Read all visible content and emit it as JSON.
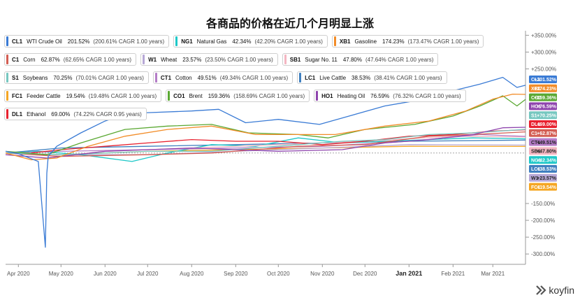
{
  "title": "各商品的价格在近几个月明显上涨",
  "brand": "koyfin",
  "chart_data": {
    "type": "line",
    "title": "各商品的价格在近几个月明显上涨",
    "x_labels": [
      "Apr 2020",
      "May 2020",
      "Jun 2020",
      "Jul 2020",
      "Aug 2020",
      "Sep 2020",
      "Oct 2020",
      "Nov 2020",
      "Dec 2020",
      "Jan 2021",
      "Feb 2021",
      "Mar 2021"
    ],
    "x_range": [
      "2020-03-23",
      "2021-03-24"
    ],
    "y_axis_labels": [
      "+350.00%",
      "+300.00%",
      "+250.00%",
      "-150.00%",
      "-200.00%",
      "-250.00%",
      "-300.00%"
    ],
    "y_range": [
      -310,
      355
    ],
    "y_unit": "%",
    "grid": false,
    "legend_position": "top-left",
    "series": [
      {
        "ticker": "CL1",
        "name": "WTI Crude Oil",
        "pct": "201.52%",
        "cagr": "(200.61% CAGR 1.00 years)",
        "badge": "CL1",
        "badge_value": "+201.52%",
        "color": "#3a7bd5",
        "final": 201.52,
        "x": [
          "2020-03-23",
          "2020-04-01",
          "2020-04-15",
          "2020-04-20",
          "2020-04-21",
          "2020-04-22",
          "2020-04-28",
          "2020-05-15",
          "2020-06-01",
          "2020-06-15",
          "2020-07-01",
          "2020-08-01",
          "2020-08-20",
          "2020-09-08",
          "2020-10-01",
          "2020-10-30",
          "2020-11-20",
          "2020-12-15",
          "2021-01-05",
          "2021-02-01",
          "2021-02-20",
          "2021-03-08",
          "2021-03-18",
          "2021-03-24"
        ],
        "y": [
          5,
          -2,
          -25,
          -280,
          -60,
          -10,
          20,
          60,
          95,
          115,
          120,
          125,
          130,
          90,
          100,
          85,
          110,
          140,
          155,
          185,
          205,
          225,
          195,
          201.52
        ]
      },
      {
        "ticker": "XB1",
        "name": "Gasoline",
        "pct": "174.23%",
        "cagr": "(173.47% CAGR 1.00 years)",
        "badge": "XB1",
        "badge_value": "+174.23%",
        "color": "#f28c28",
        "final": 174.23,
        "x": [
          "2020-03-23",
          "2020-04-10",
          "2020-04-28",
          "2020-05-20",
          "2020-06-15",
          "2020-07-15",
          "2020-08-15",
          "2020-09-15",
          "2020-10-15",
          "2020-11-10",
          "2020-12-15",
          "2021-01-15",
          "2021-02-10",
          "2021-03-01",
          "2021-03-15",
          "2021-03-24"
        ],
        "y": [
          0,
          -20,
          -15,
          20,
          50,
          70,
          80,
          55,
          55,
          55,
          80,
          95,
          125,
          160,
          175,
          174.23
        ]
      },
      {
        "ticker": "CO1",
        "name": "Brent",
        "pct": "159.36%",
        "cagr": "(158.69% CAGR 1.00 years)",
        "badge": "CO1",
        "badge_value": "+159.36%",
        "color": "#5aa832",
        "final": 159.36,
        "x": [
          "2020-03-23",
          "2020-04-21",
          "2020-05-15",
          "2020-06-15",
          "2020-07-15",
          "2020-08-15",
          "2020-09-10",
          "2020-10-15",
          "2020-11-05",
          "2020-12-01",
          "2021-01-05",
          "2021-02-01",
          "2021-02-20",
          "2021-03-08",
          "2021-03-18",
          "2021-03-24"
        ],
        "y": [
          5,
          -5,
          30,
          70,
          80,
          85,
          60,
          55,
          45,
          70,
          85,
          110,
          140,
          170,
          140,
          159.36
        ]
      },
      {
        "ticker": "HO1",
        "name": "Heating Oil",
        "pct": "76.59%",
        "cagr": "(76.32% CAGR 1.00 years)",
        "badge": "HO1",
        "badge_value": "+76.59%",
        "color": "#8e44ad",
        "final": 76.59,
        "x": [
          "2020-03-23",
          "2020-04-21",
          "2020-06-01",
          "2020-08-01",
          "2020-10-01",
          "2020-11-15",
          "2020-12-15",
          "2021-01-15",
          "2021-02-15",
          "2021-03-08",
          "2021-03-24"
        ],
        "y": [
          -5,
          -15,
          5,
          15,
          5,
          10,
          30,
          40,
          55,
          75,
          76.59
        ]
      },
      {
        "ticker": "S1",
        "name": "Soybeans",
        "pct": "70.25%",
        "cagr": "(70.01% CAGR 1.00 years)",
        "badge": "S1",
        "badge_value": "+70.25%",
        "color": "#76c7c0",
        "final": 70.25,
        "x": [
          "2020-03-23",
          "2020-05-01",
          "2020-07-01",
          "2020-08-15",
          "2020-09-15",
          "2020-10-15",
          "2020-11-15",
          "2020-12-15",
          "2021-01-15",
          "2021-02-15",
          "2021-03-24"
        ],
        "y": [
          0,
          -5,
          5,
          5,
          15,
          25,
          35,
          40,
          55,
          60,
          70.25
        ]
      },
      {
        "ticker": "DL1",
        "name": "Ethanol",
        "pct": "69.00%",
        "cagr": "(74.22% CAGR 0.95 years)",
        "badge": "DL1",
        "badge_value": "+69.00%",
        "color": "#e8212f",
        "final": 69.0,
        "x": [
          "2020-04-10",
          "2020-05-01",
          "2020-06-01",
          "2020-07-01",
          "2020-08-01",
          "2020-09-01",
          "2020-10-01",
          "2020-11-01",
          "2020-12-01",
          "2021-01-01",
          "2021-02-01",
          "2021-03-01",
          "2021-03-24"
        ],
        "y": [
          0,
          10,
          20,
          30,
          40,
          35,
          35,
          25,
          35,
          50,
          55,
          65,
          69.0
        ]
      },
      {
        "ticker": "C1",
        "name": "Corn",
        "pct": "62.87%",
        "cagr": "(62.65% CAGR 1.00 years)",
        "badge": "C1",
        "badge_value": "+62.87%",
        "color": "#d35d52",
        "final": 62.87,
        "x": [
          "2020-03-23",
          "2020-05-01",
          "2020-07-01",
          "2020-08-15",
          "2020-09-15",
          "2020-10-15",
          "2020-12-01",
          "2021-01-15",
          "2021-02-15",
          "2021-03-24"
        ],
        "y": [
          0,
          -10,
          -5,
          0,
          10,
          20,
          25,
          50,
          55,
          62.87
        ]
      },
      {
        "ticker": "CT1",
        "name": "Cotton",
        "pct": "49.51%",
        "cagr": "(49.34% CAGR 1.00 years)",
        "badge": "CT1",
        "badge_value": "+49.51%",
        "color": "#b47cc7",
        "final": 49.51,
        "x": [
          "2020-03-23",
          "2020-05-01",
          "2020-07-01",
          "2020-09-01",
          "2020-11-01",
          "2021-01-01",
          "2021-02-20",
          "2021-03-24"
        ],
        "y": [
          0,
          5,
          10,
          15,
          20,
          35,
          55,
          49.51
        ]
      },
      {
        "ticker": "SB1",
        "name": "Sugar No. 11",
        "pct": "47.80%",
        "cagr": "(47.64% CAGR 1.00 years)",
        "badge": "SB1",
        "badge_value": "+47.80%",
        "color": "#f4b6c2",
        "final": 47.8,
        "x": [
          "2020-03-23",
          "2020-04-28",
          "2020-06-01",
          "2020-08-01",
          "2020-10-01",
          "2020-12-01",
          "2021-02-01",
          "2021-03-24"
        ],
        "y": [
          0,
          -10,
          5,
          15,
          25,
          35,
          50,
          47.8
        ]
      },
      {
        "ticker": "NG1",
        "name": "Natural Gas",
        "pct": "42.34%",
        "cagr": "(42.20% CAGR 1.00 years)",
        "badge": "NG1",
        "badge_value": "+42.34%",
        "color": "#1ec8c8",
        "final": 42.34,
        "x": [
          "2020-03-23",
          "2020-04-15",
          "2020-05-15",
          "2020-06-20",
          "2020-07-15",
          "2020-08-15",
          "2020-09-15",
          "2020-10-15",
          "2020-11-15",
          "2020-12-15",
          "2021-01-15",
          "2021-02-15",
          "2021-03-24"
        ],
        "y": [
          0,
          5,
          -5,
          -25,
          0,
          25,
          20,
          45,
          30,
          35,
          40,
          45,
          42.34
        ]
      },
      {
        "ticker": "LC1",
        "name": "Live Cattle",
        "pct": "38.53%",
        "cagr": "(38.41% CAGR 1.00 years)",
        "badge": "LC1",
        "badge_value": "+38.53%",
        "color": "#3f7fbf",
        "final": 38.53,
        "x": [
          "2020-03-23",
          "2020-05-01",
          "2020-07-01",
          "2020-09-01",
          "2020-11-01",
          "2021-01-01",
          "2021-03-24"
        ],
        "y": [
          0,
          15,
          20,
          25,
          30,
          35,
          38.53
        ]
      },
      {
        "ticker": "W1",
        "name": "Wheat",
        "pct": "23.57%",
        "cagr": "(23.50% CAGR 1.00 years)",
        "badge": "W1",
        "badge_value": "+23.57%",
        "color": "#b7a8d6",
        "final": 23.57,
        "x": [
          "2020-03-23",
          "2020-05-01",
          "2020-07-01",
          "2020-09-01",
          "2020-11-01",
          "2021-01-01",
          "2021-03-24"
        ],
        "y": [
          0,
          -5,
          -5,
          5,
          15,
          25,
          23.57
        ]
      },
      {
        "ticker": "FC1",
        "name": "Feeder Cattle",
        "pct": "19.54%",
        "cagr": "(19.48% CAGR 1.00 years)",
        "badge": "FC1",
        "badge_value": "+19.54%",
        "color": "#f5a623",
        "final": 19.54,
        "x": [
          "2020-03-23",
          "2020-05-01",
          "2020-07-01",
          "2020-09-01",
          "2020-11-01",
          "2021-01-01",
          "2021-03-24"
        ],
        "y": [
          0,
          -5,
          5,
          10,
          15,
          20,
          19.54
        ]
      }
    ],
    "legend_rows": [
      [
        "CL1",
        "NG1",
        "XB1"
      ],
      [
        "C1",
        "W1",
        "SB1"
      ],
      [
        "S1",
        "CT1",
        "LC1"
      ],
      [
        "FC1",
        "CO1",
        "HO1"
      ],
      [
        "DL1"
      ]
    ]
  }
}
